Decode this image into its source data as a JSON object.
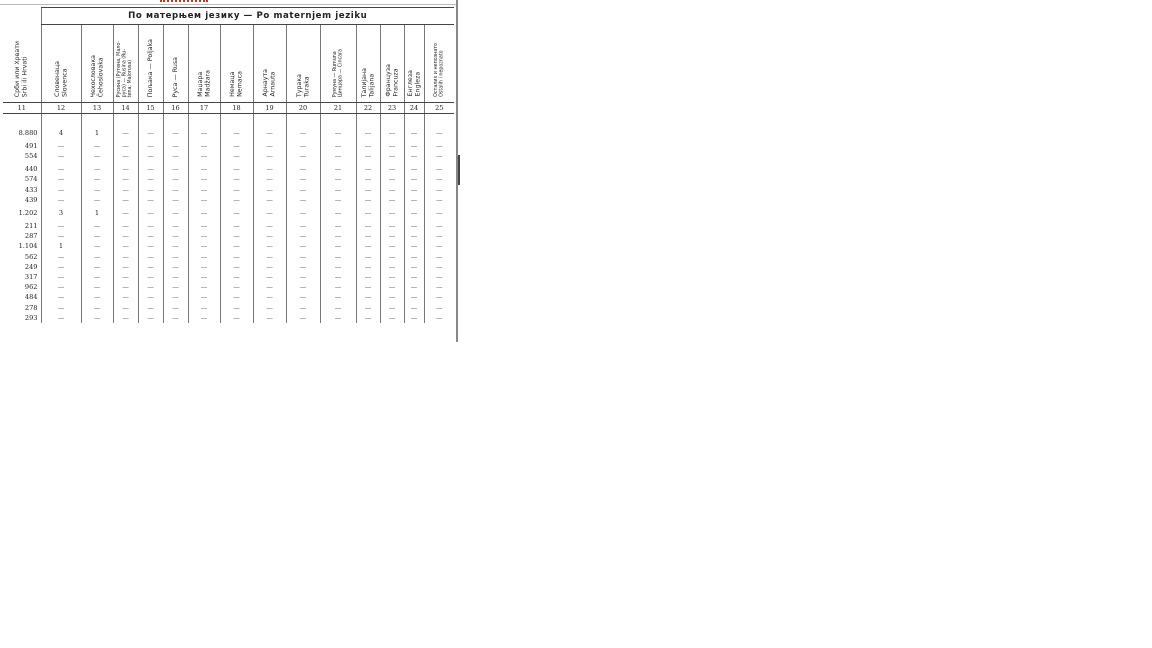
{
  "title": "По матерњем језику — Po maternjem jeziku",
  "columns": [
    {
      "label": "Срби или Хрвати\nSrbi ili Hrvati",
      "num": "11"
    },
    {
      "label": "Словенаца\nSlovenca",
      "num": "12"
    },
    {
      "label": "Чехословака\nČehoslovaka",
      "num": "13"
    },
    {
      "label": "Русина (Рутена, Мало-\nруса) — Rusina (Ru-\ntena, Malorusa)",
      "num": "14",
      "small": true
    },
    {
      "label": "Пољака — Poljaka",
      "num": "15"
    },
    {
      "label": "Руса — Rusa",
      "num": "16"
    },
    {
      "label": "Маџара\nMadžara",
      "num": "17"
    },
    {
      "label": "Немаца\nNemaca",
      "num": "18"
    },
    {
      "label": "Арнаута\nArnauta",
      "num": "19"
    },
    {
      "label": "Турака\nTuraka",
      "num": "20"
    },
    {
      "label": "Румуна — Rumuna\nЦинцара — Cincara",
      "num": "21",
      "small": true
    },
    {
      "label": "Талијана\nTalijana",
      "num": "22"
    },
    {
      "label": "Француза\nFrancuza",
      "num": "23"
    },
    {
      "label": "Енглеза\nEngleza",
      "num": "24"
    },
    {
      "label": "Осталих и непознато\nOstalih i nepoznato",
      "num": "25",
      "small": true
    }
  ],
  "rows": [
    [
      "8.880",
      "4",
      "1",
      "—",
      "—",
      "—",
      "—",
      "—",
      "—",
      "—",
      "—",
      "—",
      "—",
      "—",
      "—"
    ],
    [
      "491",
      "—",
      "—",
      "—",
      "—",
      "—",
      "—",
      "—",
      "—",
      "—",
      "—",
      "—",
      "—",
      "—",
      "—"
    ],
    [
      "554",
      "—",
      "—",
      "—",
      "—",
      "—",
      "—",
      "—",
      "—",
      "—",
      "—",
      "—",
      "—",
      "—",
      "—"
    ],
    [
      "440",
      "—",
      "—",
      "—",
      "—",
      "—",
      "—",
      "—",
      "—",
      "—",
      "—",
      "—",
      "—",
      "—",
      "—"
    ],
    [
      "574",
      "—",
      "—",
      "—",
      "—",
      "—",
      "—",
      "—",
      "—",
      "—",
      "—",
      "—",
      "—",
      "—",
      "—"
    ],
    [
      "433",
      "—",
      "—",
      "—",
      "—",
      "—",
      "—",
      "—",
      "—",
      "—",
      "—",
      "—",
      "—",
      "—",
      "—"
    ],
    [
      "439",
      "—",
      "—",
      "—",
      "—",
      "—",
      "—",
      "—",
      "—",
      "—",
      "—",
      "—",
      "—",
      "—",
      "—"
    ],
    [
      "1.202",
      "3",
      "1",
      "—",
      "—",
      "—",
      "—",
      "—",
      "—",
      "—",
      "—",
      "—",
      "—",
      "—",
      "—"
    ],
    [
      "211",
      "—",
      "—",
      "—",
      "—",
      "—",
      "—",
      "—",
      "—",
      "—",
      "—",
      "—",
      "—",
      "—",
      "—"
    ],
    [
      "287",
      "—",
      "—",
      "—",
      "—",
      "—",
      "—",
      "—",
      "—",
      "—",
      "—",
      "—",
      "—",
      "—",
      "—"
    ],
    [
      "1.104",
      "1",
      "—",
      "—",
      "—",
      "—",
      "—",
      "—",
      "—",
      "—",
      "—",
      "—",
      "—",
      "—",
      "—"
    ],
    [
      "562",
      "—",
      "—",
      "—",
      "—",
      "—",
      "—",
      "—",
      "—",
      "—",
      "—",
      "—",
      "—",
      "—",
      "—"
    ],
    [
      "249",
      "—",
      "—",
      "—",
      "—",
      "—",
      "—",
      "—",
      "—",
      "—",
      "—",
      "—",
      "—",
      "—",
      "—"
    ],
    [
      "317",
      "—",
      "—",
      "—",
      "—",
      "—",
      "—",
      "—",
      "—",
      "—",
      "—",
      "—",
      "—",
      "—",
      "—"
    ],
    [
      "962",
      "—",
      "—",
      "—",
      "—",
      "—",
      "—",
      "—",
      "—",
      "—",
      "—",
      "—",
      "—",
      "—",
      "—"
    ],
    [
      "484",
      "—",
      "—",
      "—",
      "—",
      "—",
      "—",
      "—",
      "—",
      "—",
      "—",
      "—",
      "—",
      "—",
      "—"
    ],
    [
      "278",
      "—",
      "—",
      "—",
      "—",
      "—",
      "—",
      "—",
      "—",
      "—",
      "—",
      "—",
      "—",
      "—",
      "—"
    ],
    [
      "293",
      "—",
      "—",
      "—",
      "—",
      "—",
      "—",
      "—",
      "—",
      "—",
      "—",
      "—",
      "—",
      "—",
      "—"
    ]
  ],
  "colors": {
    "red_mark": "#d42a2a",
    "rule": "#444444"
  }
}
